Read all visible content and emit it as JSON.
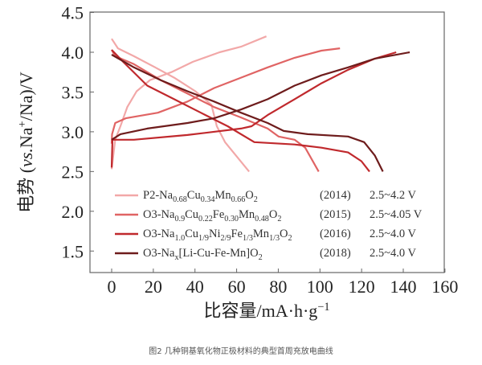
{
  "chart_data": {
    "type": "line",
    "title": "",
    "xlabel": "比容量/mA·h·g⁻¹",
    "xlabel_parts": [
      {
        "t": "比容量/mA·h·g"
      },
      {
        "t": "−1",
        "sup": true
      }
    ],
    "ylabel_parts": [
      {
        "t": "电势 ("
      },
      {
        "t": "vs.",
        "it": true
      },
      {
        "t": "Na"
      },
      {
        "t": "+",
        "sup": true
      },
      {
        "t": "/Na)/V"
      }
    ],
    "xlim": [
      0,
      160
    ],
    "ylim": [
      1.24,
      4.5
    ],
    "xticks": [
      "0",
      "20",
      "40",
      "60",
      "80",
      "100",
      "120",
      "140",
      "160"
    ],
    "xtick_values": [
      0,
      20,
      40,
      60,
      80,
      100,
      120,
      140,
      160
    ],
    "yticks": [
      "1.5",
      "2.0",
      "2.5",
      "3.0",
      "3.5",
      "4.0",
      "4.5"
    ],
    "ytick_values": [
      1.5,
      2.0,
      2.5,
      3.0,
      3.5,
      4.0,
      4.5
    ],
    "grid": false,
    "legend_position": "bottom-left",
    "series": [
      {
        "name": "P2-Na0.68Cu0.34Mn0.66O2",
        "label_parts": [
          {
            "t": "P2-Na"
          },
          {
            "t": "0.68",
            "sub": true
          },
          {
            "t": "Cu"
          },
          {
            "t": "0.34",
            "sub": true
          },
          {
            "t": "Mn"
          },
          {
            "t": "0.66",
            "sub": true
          },
          {
            "t": "O"
          },
          {
            "t": "2",
            "sub": true
          }
        ],
        "year": "(2014)",
        "range": "2.5~4.2 V",
        "color": "#f2a8a8",
        "charge": [
          [
            0,
            2.53
          ],
          [
            1.7,
            2.9
          ],
          [
            4.2,
            3.07
          ],
          [
            7.5,
            3.31
          ],
          [
            12,
            3.51
          ],
          [
            18.4,
            3.65
          ],
          [
            28.7,
            3.75
          ],
          [
            39,
            3.88
          ],
          [
            51.8,
            4.0
          ],
          [
            62.1,
            4.07
          ],
          [
            74.3,
            4.2
          ]
        ],
        "discharge": [
          [
            0,
            4.17
          ],
          [
            3,
            4.05
          ],
          [
            10.7,
            3.95
          ],
          [
            20.9,
            3.81
          ],
          [
            30,
            3.68
          ],
          [
            40.2,
            3.51
          ],
          [
            47.9,
            3.34
          ],
          [
            50.5,
            3.07
          ],
          [
            54.4,
            2.87
          ],
          [
            66,
            2.5
          ]
        ]
      },
      {
        "name": "O3-Na0.9Cu0.22Fe0.30Mn0.48O2",
        "label_parts": [
          {
            "t": "O3-Na"
          },
          {
            "t": "0.9",
            "sub": true
          },
          {
            "t": "Cu"
          },
          {
            "t": "0.22",
            "sub": true
          },
          {
            "t": "Fe"
          },
          {
            "t": "0.30",
            "sub": true
          },
          {
            "t": "Mn"
          },
          {
            "t": "0.48",
            "sub": true
          },
          {
            "t": "O"
          },
          {
            "t": "2",
            "sub": true
          }
        ],
        "year": "(2015)",
        "range": "2.5~4.05 V",
        "color": "#e06464",
        "charge": [
          [
            0,
            2.85
          ],
          [
            0.2,
            2.97
          ],
          [
            1.7,
            3.11
          ],
          [
            6.8,
            3.17
          ],
          [
            22.2,
            3.24
          ],
          [
            36.4,
            3.38
          ],
          [
            49.2,
            3.55
          ],
          [
            62.1,
            3.68
          ],
          [
            74.9,
            3.81
          ],
          [
            87.8,
            3.93
          ],
          [
            100.7,
            4.02
          ],
          [
            109.6,
            4.05
          ]
        ],
        "discharge": [
          [
            0,
            4.03
          ],
          [
            1.7,
            3.95
          ],
          [
            10.7,
            3.85
          ],
          [
            23.5,
            3.65
          ],
          [
            36.4,
            3.48
          ],
          [
            49.2,
            3.31
          ],
          [
            62.1,
            3.18
          ],
          [
            74.9,
            3.04
          ],
          [
            80.1,
            2.94
          ],
          [
            87.8,
            2.9
          ],
          [
            92.9,
            2.8
          ],
          [
            99.4,
            2.5
          ]
        ]
      },
      {
        "name": "O3-Na1.0Cu1/9Ni2/9Fe1/3Mn1/3O2",
        "label_parts": [
          {
            "t": "O3-Na"
          },
          {
            "t": "1.0",
            "sub": true
          },
          {
            "t": "Cu"
          },
          {
            "t": "1/9",
            "sub": true
          },
          {
            "t": "Ni"
          },
          {
            "t": "2/9",
            "sub": true
          },
          {
            "t": "Fe"
          },
          {
            "t": "1/3",
            "sub": true
          },
          {
            "t": "Mn"
          },
          {
            "t": "1/3",
            "sub": true
          },
          {
            "t": "O"
          },
          {
            "t": "2",
            "sub": true
          }
        ],
        "year": "(2016)",
        "range": "2.5~4.0 V",
        "color": "#c0292d",
        "charge": [
          [
            0,
            2.55
          ],
          [
            0.4,
            2.9
          ],
          [
            10.7,
            2.9
          ],
          [
            36.4,
            2.96
          ],
          [
            62.1,
            3.04
          ],
          [
            67.2,
            3.07
          ],
          [
            74.9,
            3.21
          ],
          [
            87.8,
            3.41
          ],
          [
            100.7,
            3.61
          ],
          [
            113.5,
            3.78
          ],
          [
            126.4,
            3.92
          ],
          [
            136.6,
            4.0
          ]
        ],
        "discharge": [
          [
            0,
            4.03
          ],
          [
            5.5,
            3.88
          ],
          [
            17.1,
            3.58
          ],
          [
            30,
            3.41
          ],
          [
            42.8,
            3.24
          ],
          [
            55.7,
            3.07
          ],
          [
            68.5,
            2.87
          ],
          [
            87.8,
            2.84
          ],
          [
            100.7,
            2.8
          ],
          [
            113.5,
            2.74
          ],
          [
            119.9,
            2.63
          ],
          [
            123.8,
            2.5
          ]
        ]
      },
      {
        "name": "O3-Nax[Li-Cu-Fe-Mn]O2",
        "label_parts": [
          {
            "t": "O3-Na"
          },
          {
            "t": "x",
            "sub": true
          },
          {
            "t": "[Li-Cu-Fe-Mn]O"
          },
          {
            "t": "2",
            "sub": true
          }
        ],
        "year": "(2018)",
        "range": "2.5~4.0 V",
        "color": "#6e1c1c",
        "charge": [
          [
            0,
            2.9
          ],
          [
            4.2,
            2.97
          ],
          [
            17.1,
            3.04
          ],
          [
            36.4,
            3.11
          ],
          [
            49.2,
            3.17
          ],
          [
            62.1,
            3.28
          ],
          [
            74.9,
            3.41
          ],
          [
            87.8,
            3.58
          ],
          [
            100.7,
            3.71
          ],
          [
            113.5,
            3.81
          ],
          [
            126.4,
            3.92
          ],
          [
            143.1,
            4.0
          ]
        ],
        "discharge": [
          [
            0,
            3.97
          ],
          [
            10.7,
            3.81
          ],
          [
            23.5,
            3.65
          ],
          [
            36.4,
            3.51
          ],
          [
            49.2,
            3.38
          ],
          [
            62.1,
            3.24
          ],
          [
            74.9,
            3.11
          ],
          [
            82.6,
            3.01
          ],
          [
            94.2,
            2.97
          ],
          [
            113.5,
            2.94
          ],
          [
            121.2,
            2.87
          ],
          [
            126.4,
            2.7
          ],
          [
            130.2,
            2.5
          ]
        ]
      }
    ]
  },
  "caption": "图2   几种铜基氧化物正极材料的典型首周充放电曲线"
}
